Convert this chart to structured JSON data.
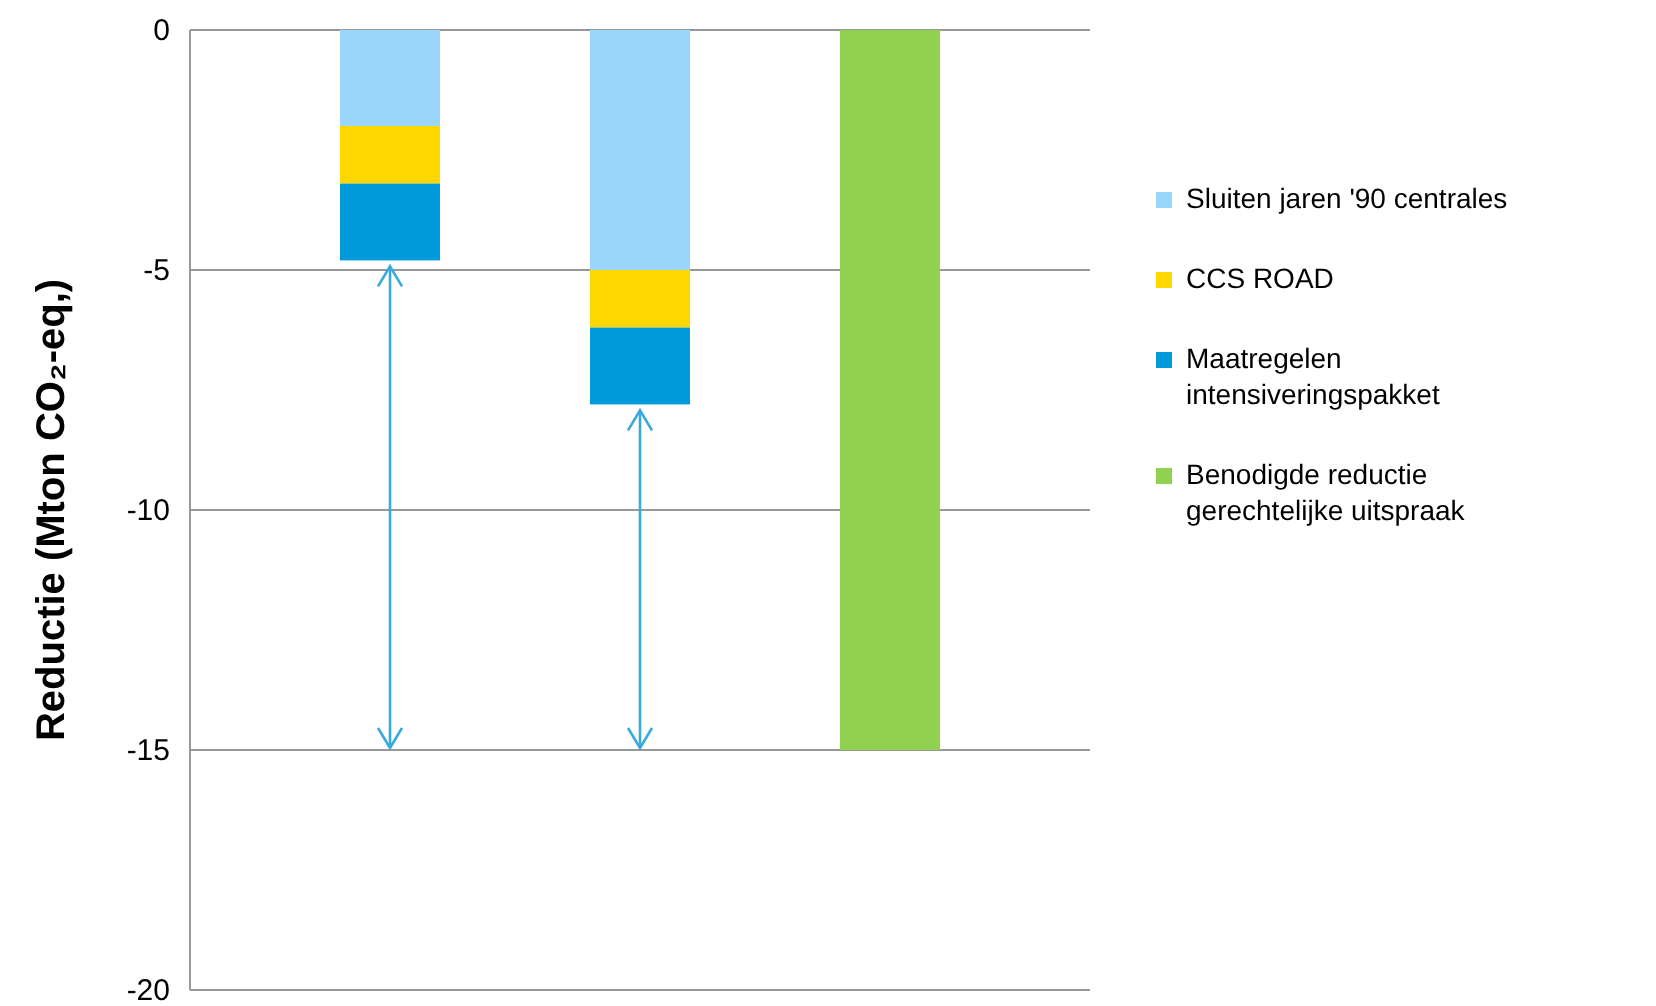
{
  "chart_data": {
    "type": "bar",
    "stacked": true,
    "ylabel": "Reductie (Mton CO₂-eq,)",
    "categories": [
      null,
      null,
      null
    ],
    "series": [
      {
        "name": "Sluiten jaren '90 centrales",
        "color": "#99d6fa",
        "values": [
          -2,
          -5,
          null
        ]
      },
      {
        "name": "CCS ROAD",
        "color": "#ffd700",
        "values": [
          -1.2,
          -1.2,
          null
        ]
      },
      {
        "name": "Maatregelen intensiveringspakket",
        "color": "#0099da",
        "values": [
          -1.6,
          -1.6,
          null
        ]
      },
      {
        "name": "Benodigde reductie gerechtelijke uitspraak",
        "color": "#92d050",
        "values": [
          null,
          null,
          -15
        ]
      }
    ],
    "ylim": [
      -20,
      0
    ],
    "yticks": [
      0,
      -5,
      -10,
      -15,
      -20
    ],
    "grid": "y",
    "legend": "right"
  }
}
